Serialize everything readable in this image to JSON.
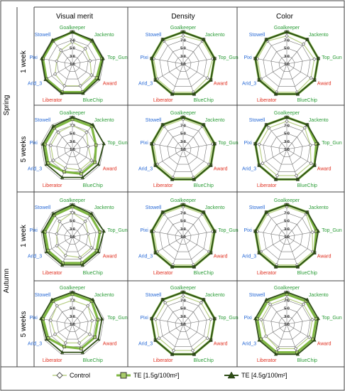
{
  "column_headers": [
    "Visual merit",
    "Density",
    "Color"
  ],
  "season_labels": [
    "Spring",
    "Autumn"
  ],
  "week_labels": [
    "1 week",
    "5 weeks",
    "1 week",
    "5 weeks"
  ],
  "axis_ticks": [
    "1.0",
    "3.0",
    "5.0",
    "7.0",
    "9.0"
  ],
  "legend": {
    "control": "Control",
    "te15": "TE [1.5g/100m²]",
    "te45": "TE [4.5g/100m²]"
  },
  "colors": {
    "green_label": "#2e9e3a",
    "red_label": "#e03020",
    "blue_label": "#2a6bd6",
    "control": "#b9cf86",
    "te15": "#7fb742",
    "te45": "#2f4e17"
  },
  "chart_data": {
    "type": "radar",
    "axes": [
      "Goalkeeper",
      "Jackento",
      "Top_Gun",
      "Award",
      "BlueChip",
      "Liberator",
      "Arid_3",
      "Pixi",
      "Stowell"
    ],
    "axis_label_colors": [
      "green",
      "green",
      "green",
      "red",
      "green",
      "red",
      "blue",
      "blue",
      "blue"
    ],
    "range": [
      1,
      9
    ],
    "ticks": [
      1,
      3,
      5,
      7,
      9
    ],
    "series_names": [
      "Control",
      "TE [1.5g/100m²]",
      "TE [4.5g/100m²]"
    ],
    "panels": [
      {
        "season": "Spring",
        "weeks": "1 week",
        "metric": "Visual merit",
        "series": [
          [
            6.5,
            6.0,
            5.5,
            6.5,
            6.8,
            6.8,
            6.0,
            5.0,
            5.5
          ],
          [
            9.0,
            8.5,
            8.5,
            8.0,
            8.5,
            8.5,
            8.5,
            8.5,
            8.5
          ],
          [
            9.0,
            8.8,
            8.8,
            8.5,
            8.8,
            8.8,
            8.8,
            8.8,
            8.8
          ]
        ]
      },
      {
        "season": "Spring",
        "weeks": "1 week",
        "metric": "Density",
        "series": [
          [
            8.0,
            8.5,
            8.5,
            8.0,
            8.5,
            8.5,
            8.5,
            8.5,
            8.5
          ],
          [
            9.0,
            9.0,
            9.0,
            9.0,
            9.0,
            9.0,
            9.0,
            9.0,
            9.0
          ],
          [
            9.0,
            9.0,
            9.0,
            9.0,
            9.0,
            9.0,
            9.0,
            9.0,
            9.0
          ]
        ]
      },
      {
        "season": "Spring",
        "weeks": "1 week",
        "metric": "Color",
        "series": [
          [
            8.0,
            7.5,
            8.0,
            8.0,
            8.5,
            8.5,
            8.5,
            8.5,
            8.5
          ],
          [
            9.0,
            9.0,
            9.0,
            9.0,
            9.0,
            9.0,
            9.0,
            9.0,
            9.0
          ],
          [
            9.0,
            9.0,
            9.0,
            9.0,
            9.0,
            9.0,
            9.0,
            9.0,
            9.0
          ]
        ]
      },
      {
        "season": "Spring",
        "weeks": "5 weeks",
        "metric": "Visual merit",
        "series": [
          [
            7.0,
            6.5,
            5.0,
            6.5,
            6.5,
            6.0,
            6.5,
            6.5,
            6.5
          ],
          [
            8.5,
            8.5,
            7.0,
            7.5,
            7.5,
            7.0,
            8.0,
            8.0,
            8.0
          ],
          [
            9.0,
            9.0,
            9.0,
            8.5,
            8.5,
            8.5,
            8.5,
            8.5,
            8.5
          ]
        ]
      },
      {
        "season": "Spring",
        "weeks": "5 weeks",
        "metric": "Density",
        "series": [
          [
            8.5,
            8.5,
            8.5,
            8.5,
            8.5,
            8.5,
            8.5,
            8.5,
            8.5
          ],
          [
            9.0,
            9.0,
            9.0,
            9.0,
            9.0,
            9.0,
            9.0,
            9.0,
            9.0
          ],
          [
            9.0,
            9.0,
            9.0,
            9.0,
            9.0,
            9.0,
            9.0,
            9.0,
            9.0
          ]
        ]
      },
      {
        "season": "Spring",
        "weeks": "5 weeks",
        "metric": "Color",
        "series": [
          [
            8.0,
            8.0,
            7.0,
            8.0,
            8.0,
            8.0,
            8.0,
            8.0,
            8.0
          ],
          [
            9.0,
            9.0,
            8.5,
            9.0,
            9.0,
            9.0,
            9.0,
            9.0,
            9.0
          ],
          [
            9.0,
            9.0,
            9.0,
            9.0,
            9.0,
            9.0,
            9.0,
            9.0,
            9.0
          ]
        ]
      },
      {
        "season": "Autumn",
        "weeks": "1 week",
        "metric": "Visual merit",
        "series": [
          [
            7.0,
            6.0,
            5.0,
            6.5,
            6.5,
            6.0,
            5.5,
            5.0,
            6.0
          ],
          [
            8.5,
            8.0,
            8.0,
            8.0,
            8.0,
            8.0,
            8.0,
            8.0,
            8.0
          ],
          [
            9.0,
            8.5,
            9.0,
            8.5,
            8.5,
            8.5,
            8.5,
            8.5,
            8.5
          ]
        ]
      },
      {
        "season": "Autumn",
        "weeks": "1 week",
        "metric": "Density",
        "series": [
          [
            8.5,
            8.5,
            8.5,
            8.5,
            8.5,
            8.5,
            8.5,
            8.5,
            8.5
          ],
          [
            9.0,
            9.0,
            9.0,
            9.0,
            9.0,
            9.0,
            9.0,
            9.0,
            9.0
          ],
          [
            9.0,
            9.0,
            9.0,
            9.0,
            9.0,
            9.0,
            9.0,
            9.0,
            9.0
          ]
        ]
      },
      {
        "season": "Autumn",
        "weeks": "1 week",
        "metric": "Color",
        "series": [
          [
            8.5,
            8.5,
            7.5,
            8.5,
            8.5,
            8.5,
            8.5,
            8.5,
            8.5
          ],
          [
            9.0,
            9.0,
            8.5,
            9.0,
            9.0,
            9.0,
            9.0,
            9.0,
            9.0
          ],
          [
            9.0,
            9.0,
            9.0,
            9.0,
            9.0,
            9.0,
            9.0,
            9.0,
            9.0
          ]
        ]
      },
      {
        "season": "Autumn",
        "weeks": "5 weeks",
        "metric": "Visual merit",
        "series": [
          [
            7.0,
            7.0,
            6.0,
            6.0,
            6.0,
            6.0,
            6.0,
            6.5,
            7.0
          ],
          [
            8.5,
            8.5,
            7.5,
            7.5,
            7.5,
            7.0,
            8.0,
            8.5,
            8.5
          ],
          [
            9.0,
            9.0,
            8.5,
            8.5,
            8.5,
            8.5,
            8.5,
            9.0,
            9.0
          ]
        ]
      },
      {
        "season": "Autumn",
        "weeks": "5 weeks",
        "metric": "Density",
        "series": [
          [
            8.0,
            8.0,
            8.0,
            8.0,
            8.0,
            8.0,
            8.0,
            8.0,
            8.0
          ],
          [
            9.0,
            9.0,
            9.0,
            9.0,
            9.0,
            9.0,
            9.0,
            9.0,
            9.0
          ],
          [
            9.0,
            9.0,
            9.0,
            9.0,
            9.0,
            9.0,
            9.0,
            9.0,
            9.0
          ]
        ]
      },
      {
        "season": "Autumn",
        "weeks": "5 weeks",
        "metric": "Color",
        "series": [
          [
            7.5,
            7.5,
            7.5,
            7.5,
            7.5,
            7.5,
            7.0,
            7.5,
            7.5
          ],
          [
            8.5,
            8.5,
            8.5,
            8.5,
            8.5,
            8.5,
            8.5,
            8.5,
            8.5
          ],
          [
            9.0,
            9.0,
            9.0,
            9.0,
            9.0,
            9.0,
            9.0,
            9.0,
            9.0
          ]
        ]
      }
    ]
  }
}
